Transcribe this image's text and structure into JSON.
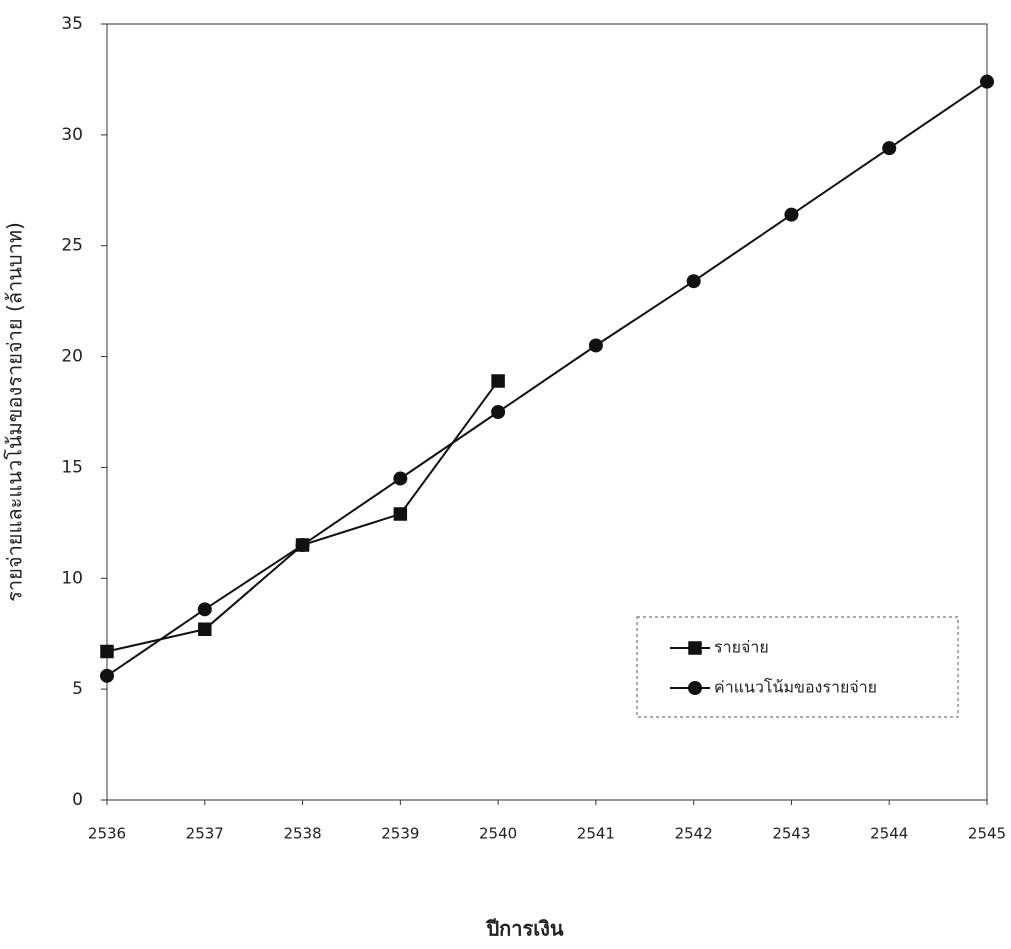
{
  "chart_data": {
    "type": "line",
    "x_label": "ปีการเงิน",
    "y_label": "รายจ่ายและแนวโน้มของรายจ่าย (ล้านบาท)",
    "x": [
      2536,
      2537,
      2538,
      2539,
      2540,
      2541,
      2542,
      2543,
      2544,
      2545
    ],
    "xlim": [
      2536,
      2545
    ],
    "xticks": [
      2536,
      2537,
      2538,
      2539,
      2540,
      2541,
      2542,
      2543,
      2544,
      2545
    ],
    "ylim": [
      0,
      35
    ],
    "yticks": [
      0,
      5,
      10,
      15,
      20,
      25,
      30,
      35
    ],
    "legend": "lower right",
    "series": [
      {
        "name": "รายจ่าย",
        "color": "#111111",
        "marker": "square",
        "values": [
          6.7,
          7.7,
          11.5,
          12.9,
          18.9,
          null,
          null,
          null,
          null,
          null
        ]
      },
      {
        "name": "ค่าแนวโน้มของรายจ่าย",
        "color": "#111111",
        "marker": "circle",
        "values": [
          5.6,
          8.6,
          11.5,
          14.5,
          17.5,
          20.5,
          23.4,
          26.4,
          29.4,
          32.4
        ]
      }
    ]
  }
}
